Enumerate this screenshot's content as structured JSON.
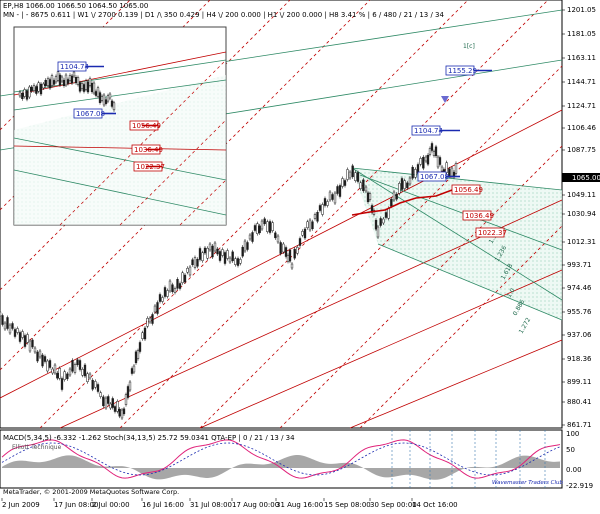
{
  "header": {
    "line1": "EP,H8  1066.00 1066.50 1064.50 1065.00",
    "line2": "MN - | - 8675  0.611  | W1 \\/ 2700  0.139  |  D1 /\\ 350  0.429  |  H4 \\/ 200  0.000  |  H1 \\/ 200  0.000  |  H8  3.41 %  |  6 / 480 / 21 / 13 / 34"
  },
  "price_axis": {
    "labels": [
      "1201.05",
      "1181.05",
      "1163.11",
      "1144.71",
      "1124.71",
      "1106.46",
      "1087.75",
      "1065.00",
      "1049.11",
      "1030.94",
      "1012.31",
      "993.71",
      "974.46",
      "955.76",
      "937.06",
      "918.36",
      "899.11",
      "880.41",
      "861.71"
    ],
    "current_price": "1065.00"
  },
  "time_axis": {
    "labels": [
      "2 Jun 2009",
      "17 Jun 08:00",
      "2 Jul 00:00",
      "16 Jul 16:00",
      "31 Jul 08:00",
      "17 Aug 00:00",
      "31 Aug 16:00",
      "15 Sep 08:00",
      "30 Sep 00:00",
      "14 Oct 16:00"
    ]
  },
  "price_tags": {
    "main": [
      {
        "text": "1104.74",
        "color": "#1a2ab0"
      },
      {
        "text": "1067.08",
        "color": "#1a2ab0"
      },
      {
        "text": "1056.49",
        "color": "#c00000"
      },
      {
        "text": "1036.49",
        "color": "#c00000"
      },
      {
        "text": "1022.37",
        "color": "#c00000"
      },
      {
        "text": "1155.29",
        "color": "#1a2ab0"
      }
    ],
    "inset": [
      {
        "text": "1104.74",
        "color": "#1a2ab0"
      },
      {
        "text": "1067.08",
        "color": "#1a2ab0"
      },
      {
        "text": "1056.49",
        "color": "#c00000"
      },
      {
        "text": "1036.49",
        "color": "#c00000"
      },
      {
        "text": "1022.37",
        "color": "#c00000"
      }
    ]
  },
  "indicator": {
    "title": "MACD(5,34,5) -6.332 -1.262  Stoch(34,13,5) 25.72 59.0341  QTA-EP  | 0 / 21 / 13 / 34",
    "sub": "Elliott Technique",
    "scale": [
      "100",
      "50",
      "0.00",
      "-22.919"
    ]
  },
  "footer": {
    "copyright": "MetaTrader, © 2001-2009 MetaQuotes Software Corp.",
    "watermark": "Wavemaster Traders Club"
  },
  "fib_labels": [
    "1.382",
    "1.236",
    "1.618",
    "1.0",
    "0.886",
    "1.272"
  ],
  "marker": "1[c]",
  "colors": {
    "bull": "#1a1a1a",
    "red": "#c00000",
    "blue": "#1a2ab0",
    "green": "#2f8a66",
    "fan": "#d9f0e8"
  }
}
